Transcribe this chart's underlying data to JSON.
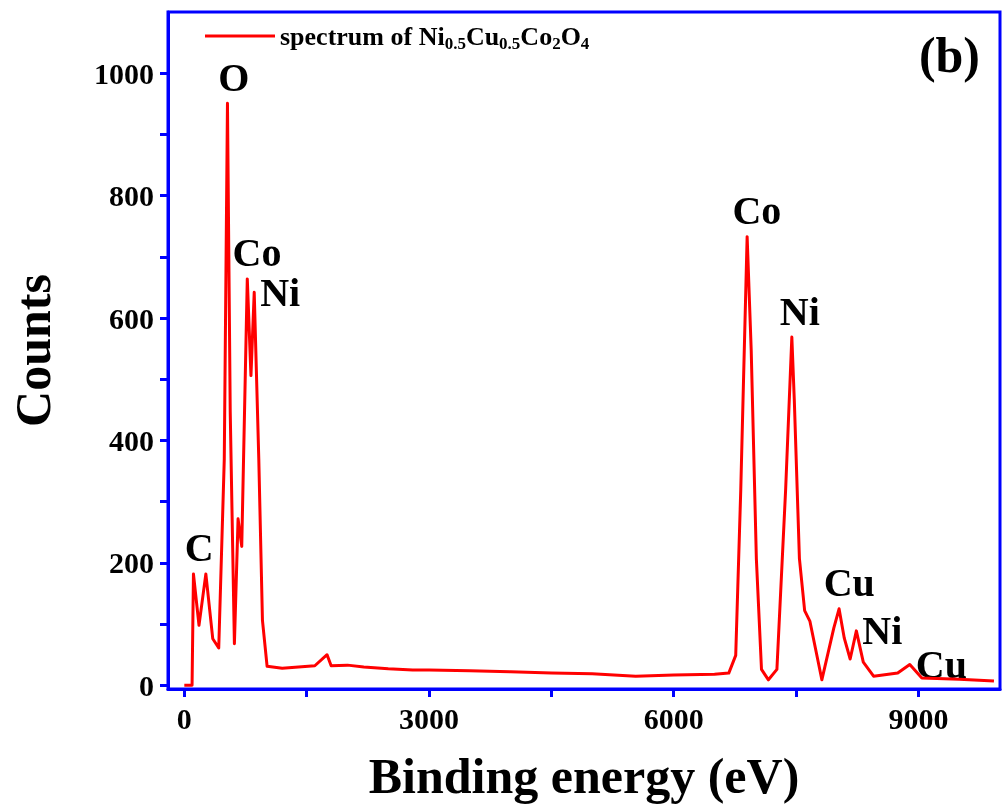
{
  "chart_data": {
    "type": "line",
    "xlabel": "Binding energy (eV)",
    "ylabel": "Counts",
    "series": [
      {
        "name": "spectrum of Ni$_{0.5}$Cu$_{0.5}$Co$_{2}$O$_{4}$",
        "color": "#ff0000",
        "x": [
          0,
          95,
          112,
          180,
          264,
          349,
          422,
          490,
          529,
          563,
          614,
          659,
          704,
          772,
          817,
          857,
          913,
          958,
          1015,
          1200,
          1400,
          1600,
          1750,
          1800,
          2000,
          2200,
          2500,
          2800,
          3000,
          3500,
          4000,
          4500,
          5000,
          5534,
          6000,
          6500,
          6675,
          6760,
          6822,
          6900,
          6950,
          7013,
          7076,
          7161,
          7265,
          7372,
          7448,
          7478,
          7541,
          7605,
          7669,
          7816,
          7963,
          8027,
          8091,
          8163,
          8239,
          8324,
          8450,
          8746,
          8894,
          9042,
          9500,
          9926
        ],
        "values": [
          0,
          0,
          182,
          98,
          182,
          76,
          61,
          370,
          951,
          446,
          68,
          272,
          227,
          664,
          506,
          642,
          370,
          106,
          31,
          28,
          30,
          32,
          50,
          32,
          33,
          30,
          27,
          25,
          25,
          24,
          22,
          20,
          19,
          15,
          17,
          18,
          20,
          49,
          320,
          733,
          547,
          207,
          26,
          9,
          26,
          320,
          569,
          467,
          207,
          122,
          105,
          9,
          94,
          125,
          77,
          43,
          89,
          38,
          15,
          20,
          34,
          12,
          10,
          7
        ]
      }
    ],
    "xlim": [
      -200,
      10000
    ],
    "ylim": [
      -6,
      1100
    ],
    "xticks": [
      0,
      {
        "value": 1500,
        "label": null
      },
      3000,
      {
        "value": 4500,
        "label": null
      },
      6000,
      {
        "value": 7500,
        "label": null
      },
      9000
    ],
    "yticks": [
      0,
      {
        "value": 100,
        "label": null
      },
      200,
      {
        "value": 300,
        "label": null
      },
      400,
      {
        "value": 500,
        "label": null
      },
      600,
      {
        "value": 700,
        "label": null
      },
      800,
      {
        "value": 900,
        "label": null
      },
      1000
    ],
    "legend": "top left",
    "annotations": [
      "(b)",
      {
        "text": "C",
        "x": 112,
        "y": 182
      },
      {
        "text": "O",
        "x": 529,
        "y": 951
      },
      {
        "text": "Co",
        "x": 772,
        "y": 664
      },
      {
        "text": "Ni",
        "x": 857,
        "y": 642
      },
      {
        "text": "Co",
        "x": 6900,
        "y": 733
      },
      {
        "text": "Ni",
        "x": 7448,
        "y": 569
      },
      {
        "text": "Cu",
        "x": 8027,
        "y": 125
      },
      {
        "text": "Ni",
        "x": 8239,
        "y": 89
      },
      {
        "text": "Cu",
        "x": 8894,
        "y": 34
      }
    ]
  }
}
